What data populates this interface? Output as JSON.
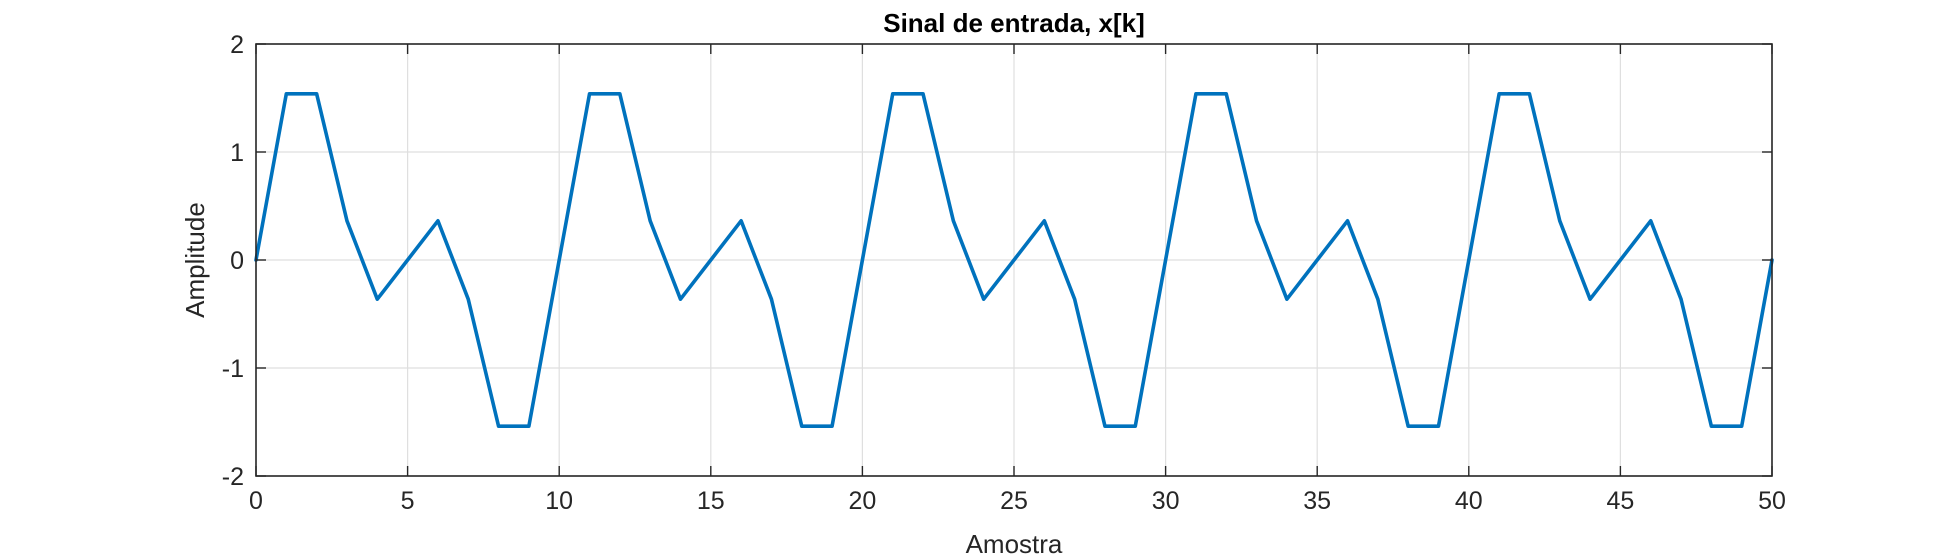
{
  "chart_data": {
    "type": "line",
    "title": "Sinal de entrada, x[k]",
    "xlabel": "Amostra",
    "ylabel": "Amplitude",
    "xlim": [
      0,
      50
    ],
    "ylim": [
      -2,
      2
    ],
    "xticks": [
      0,
      5,
      10,
      15,
      20,
      25,
      30,
      35,
      40,
      45,
      50
    ],
    "yticks": [
      -2,
      -1,
      0,
      1,
      2
    ],
    "grid": true,
    "series": [
      {
        "color": "#0072BD",
        "x": [
          0,
          1,
          2,
          3,
          4,
          5,
          6,
          7,
          8,
          9,
          10,
          11,
          12,
          13,
          14,
          15,
          16,
          17,
          18,
          19,
          20,
          21,
          22,
          23,
          24,
          25,
          26,
          27,
          28,
          29,
          30,
          31,
          32,
          33,
          34,
          35,
          36,
          37,
          38,
          39,
          40,
          41,
          42,
          43,
          44,
          45,
          46,
          47,
          48,
          49,
          50
        ],
        "y": [
          0,
          1.539,
          1.539,
          0.363,
          -0.363,
          0,
          0.363,
          -0.363,
          -1.539,
          -1.539,
          0,
          1.539,
          1.539,
          0.363,
          -0.363,
          0,
          0.363,
          -0.363,
          -1.539,
          -1.539,
          0,
          1.539,
          1.539,
          0.363,
          -0.363,
          0,
          0.363,
          -0.363,
          -1.539,
          -1.539,
          0,
          1.539,
          1.539,
          0.363,
          -0.363,
          0,
          0.363,
          -0.363,
          -1.539,
          -1.539,
          0,
          1.539,
          1.539,
          0.363,
          -0.363,
          0,
          0.363,
          -0.363,
          -1.539,
          -1.539,
          0
        ]
      }
    ],
    "colors": {
      "axes": "#262626",
      "grid": "#dfdfdf",
      "background": "#ffffff"
    }
  }
}
